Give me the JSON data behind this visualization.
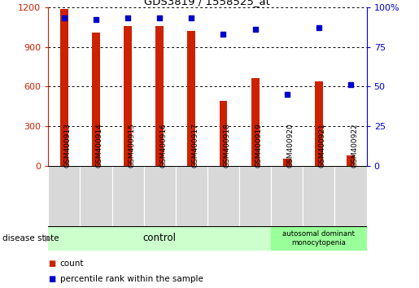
{
  "title": "GDS3819 / 1558525_at",
  "samples": [
    "GSM400913",
    "GSM400914",
    "GSM400915",
    "GSM400916",
    "GSM400917",
    "GSM400918",
    "GSM400919",
    "GSM400920",
    "GSM400921",
    "GSM400922"
  ],
  "counts": [
    1185,
    1010,
    1060,
    1060,
    1020,
    490,
    660,
    55,
    640,
    75
  ],
  "percentiles": [
    93,
    92,
    93,
    93,
    93,
    83,
    86,
    45,
    87,
    51
  ],
  "ylim_left": [
    0,
    1200
  ],
  "ylim_right": [
    0,
    100
  ],
  "yticks_left": [
    0,
    300,
    600,
    900,
    1200
  ],
  "yticks_right": [
    0,
    25,
    50,
    75,
    100
  ],
  "bar_color": "#cc2200",
  "dot_color": "#0000cc",
  "bar_width": 0.25,
  "grid_color": "#000000",
  "control_indices": [
    0,
    1,
    2,
    3,
    4,
    5,
    6
  ],
  "disease_indices": [
    7,
    8,
    9
  ],
  "control_label": "control",
  "disease_label": "autosomal dominant\nmonocytopenia",
  "control_color": "#ccffcc",
  "disease_color": "#99ff99",
  "label_count": "count",
  "label_percentile": "percentile rank within the sample",
  "disease_state_label": "disease state",
  "tick_bg_color": "#d8d8d8",
  "left_axis_color": "#cc2200",
  "right_axis_color": "#0000cc",
  "fig_bg": "#ffffff"
}
